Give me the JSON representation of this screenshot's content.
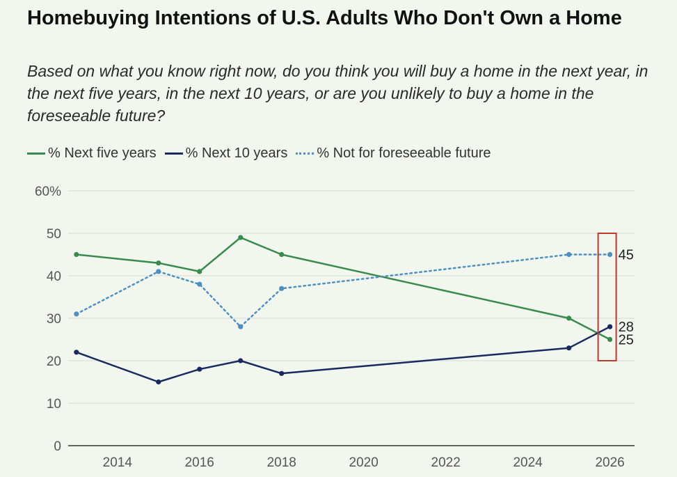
{
  "chart_data": {
    "type": "line",
    "title": "Homebuying Intentions of U.S. Adults Who Don't Own a Home",
    "subtitle": "Based on what you know right now, do you think you will buy a home in the next year, in the next five years, in the next 10 years, or are you unlikely to buy a home in the foreseeable future?",
    "xlabel": "",
    "ylabel": "",
    "x_ticks": [
      2014,
      2016,
      2018,
      2020,
      2022,
      2024,
      2026
    ],
    "y_ticks": [
      "0",
      "10",
      "20",
      "30",
      "40",
      "50",
      "60%"
    ],
    "xlim": [
      2012.8,
      2026.6
    ],
    "ylim": [
      0,
      60
    ],
    "grid": true,
    "legend_position": "top-left",
    "series": [
      {
        "name": "% Next five years",
        "color": "#3a8a4d",
        "style": "solid",
        "x": [
          2013,
          2015,
          2016,
          2017,
          2018,
          2025,
          2026
        ],
        "values": [
          45,
          43,
          41,
          49,
          45,
          30,
          25
        ]
      },
      {
        "name": "% Next 10 years",
        "color": "#1a2a5e",
        "style": "solid",
        "x": [
          2013,
          2015,
          2016,
          2017,
          2018,
          2025,
          2026
        ],
        "values": [
          22,
          15,
          18,
          20,
          17,
          23,
          28
        ]
      },
      {
        "name": "% Not for foreseeable future",
        "color": "#4f8fbf",
        "style": "dotted",
        "x": [
          2013,
          2015,
          2016,
          2017,
          2018,
          2025,
          2026
        ],
        "values": [
          31,
          41,
          38,
          28,
          37,
          45,
          45
        ]
      }
    ],
    "end_labels": [
      {
        "series": 2,
        "text": "45"
      },
      {
        "series": 1,
        "text": "28"
      },
      {
        "series": 0,
        "text": "25"
      }
    ],
    "highlight_box_color": "#c0392b"
  }
}
